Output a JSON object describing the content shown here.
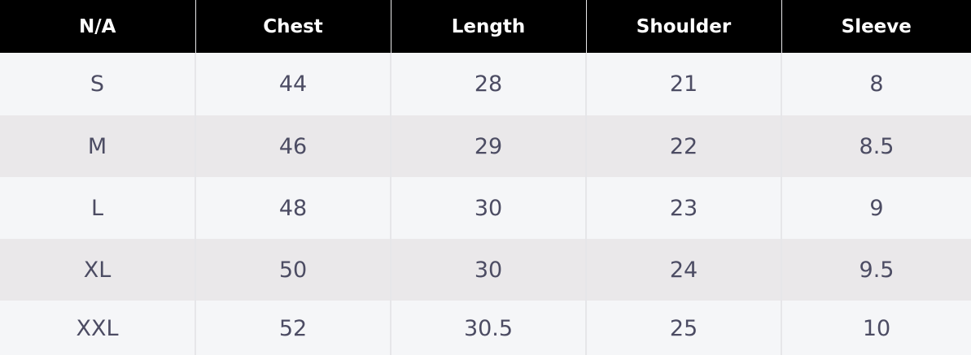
{
  "table": {
    "headers": [
      "N/A",
      "Chest",
      "Length",
      "Shoulder",
      "Sleeve"
    ],
    "rows": [
      [
        "S",
        "44",
        "28",
        "21",
        "8"
      ],
      [
        "M",
        "46",
        "29",
        "22",
        "8.5"
      ],
      [
        "L",
        "48",
        "30",
        "23",
        "9"
      ],
      [
        "XL",
        "50",
        "30",
        "24",
        "9.5"
      ],
      [
        "XXL",
        "52",
        "30.5",
        "25",
        "10"
      ]
    ]
  },
  "colors": {
    "header_bg": "#000000",
    "header_text": "#ffffff",
    "row_light": "#f5f6f8",
    "row_shaded": "#eae8ea",
    "cell_text": "#4c4c63"
  }
}
